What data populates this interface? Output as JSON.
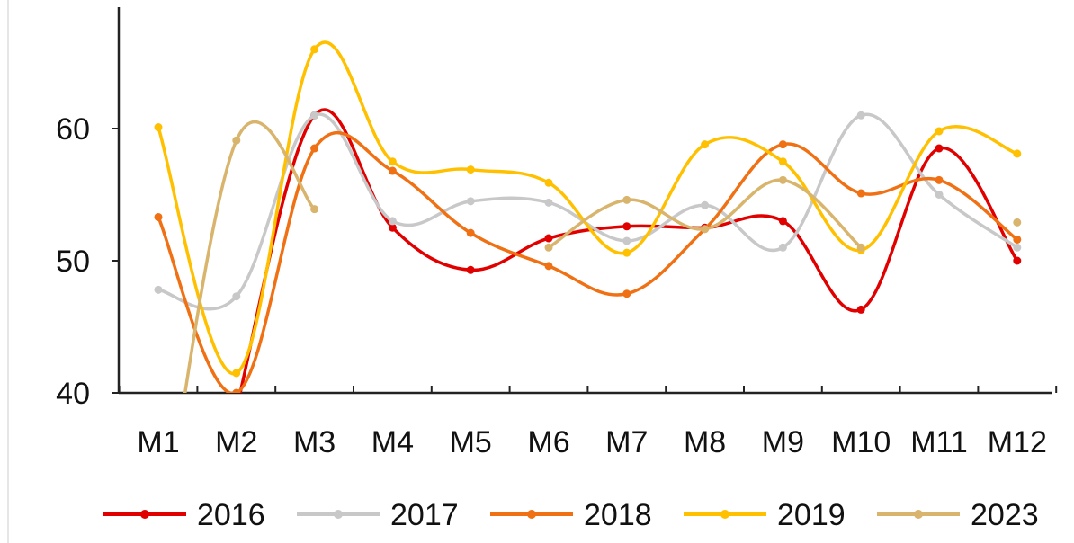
{
  "chart_data": {
    "type": "line",
    "categories": [
      "M1",
      "M2",
      "M3",
      "M4",
      "M5",
      "M6",
      "M7",
      "M8",
      "M9",
      "M10",
      "M11",
      "M12"
    ],
    "ylim": [
      40,
      70
    ],
    "yticks": [
      40,
      50,
      60
    ],
    "grid": false,
    "legend_position": "bottom",
    "series": [
      {
        "name": "2016",
        "color": "#e00000",
        "values": [
          null,
          38.8,
          61.0,
          52.5,
          49.3,
          51.7,
          52.6,
          52.5,
          53.0,
          46.3,
          58.5,
          50.0
        ]
      },
      {
        "name": "2017",
        "color": "#c8c8c8",
        "values": [
          47.8,
          47.3,
          61.0,
          53.0,
          54.5,
          54.4,
          51.5,
          54.2,
          51.0,
          61.0,
          55.0,
          51.0
        ]
      },
      {
        "name": "2018",
        "color": "#f07014",
        "values": [
          53.3,
          40.0,
          58.5,
          56.8,
          52.1,
          49.6,
          47.5,
          52.4,
          58.8,
          55.1,
          56.1,
          51.6
        ]
      },
      {
        "name": "2019",
        "color": "#ffc000",
        "values": [
          60.1,
          41.5,
          66.0,
          57.5,
          56.9,
          55.9,
          50.6,
          58.8,
          57.5,
          50.8,
          59.8,
          58.1
        ]
      },
      {
        "name": "2023",
        "color": "#d8b46c",
        "values": [
          27.0,
          59.1,
          53.9,
          null,
          null,
          51.0,
          54.6,
          52.4,
          56.1,
          51.0,
          null,
          52.9
        ]
      }
    ]
  }
}
